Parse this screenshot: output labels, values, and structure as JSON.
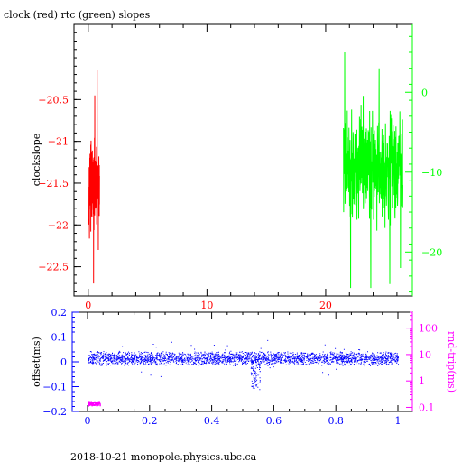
{
  "chart_data": [
    {
      "type": "line",
      "title": "clock (red) rtc (green) slopes",
      "xlabel": "",
      "ylabel": "clockslope",
      "xlim": [
        -1.2,
        27.3
      ],
      "ylim": [
        -22.85,
        -19.6
      ],
      "x_ticks": [
        0,
        10,
        20
      ],
      "y_ticks": [
        -20.5,
        -21,
        -21.5,
        -22,
        -22.5
      ],
      "y2lim": [
        -25.5,
        8.5
      ],
      "y2_ticks": [
        0,
        -10,
        -20
      ],
      "series": [
        {
          "name": "clock",
          "color": "#ff0000",
          "axis": "left",
          "x_range": [
            0.05,
            0.95
          ],
          "center": -21.55,
          "spread": 0.3,
          "peaks": [
            [
              0.75,
              -20.15
            ],
            [
              0.55,
              -20.45
            ],
            [
              0.45,
              -22.7
            ],
            [
              0.85,
              -22.3
            ],
            [
              0.15,
              -21.15
            ]
          ]
        },
        {
          "name": "rtc",
          "color": "#00ff00",
          "axis": "right",
          "x_range": [
            21.5,
            26.5
          ],
          "center": -9,
          "spread": 4.5,
          "peaks": [
            [
              21.6,
              5
            ],
            [
              22.1,
              -24.5
            ],
            [
              23.8,
              -24.5
            ],
            [
              24.5,
              3
            ],
            [
              25.4,
              -24
            ],
            [
              26.3,
              -22
            ]
          ]
        }
      ]
    },
    {
      "type": "scatter",
      "xlabel": "",
      "ylabel": "offset(ms)",
      "y2label": "rnd-trip(ms)",
      "xlim": [
        -0.05,
        1.05
      ],
      "ylim": [
        -0.2,
        0.2
      ],
      "x_ticks": [
        0,
        0.2,
        0.4,
        0.6,
        0.8,
        1
      ],
      "y_ticks": [
        0.2,
        0.1,
        0,
        -0.1,
        -0.2
      ],
      "y2lim": [
        0.07,
        400
      ],
      "y2_ticks": [
        100,
        10,
        1,
        0.1
      ],
      "series": [
        {
          "name": "offset",
          "color": "#0000ff",
          "x_range": [
            0,
            1
          ],
          "center": 0.015,
          "spread": 0.03,
          "dip": {
            "x": 0.54,
            "y": -0.11
          }
        },
        {
          "name": "rnd-trip",
          "color": "#ff00ff",
          "x_range": [
            0,
            0.04
          ],
          "center": 0.15,
          "spread": 0.05
        }
      ]
    }
  ],
  "footer": "2018-10-21 monopole.physics.ubc.ca",
  "colors": {
    "clock": "#ff0000",
    "rtc": "#00ff00",
    "offset": "#0000ff",
    "rndtrip": "#ff00ff",
    "axis": "#000000"
  }
}
